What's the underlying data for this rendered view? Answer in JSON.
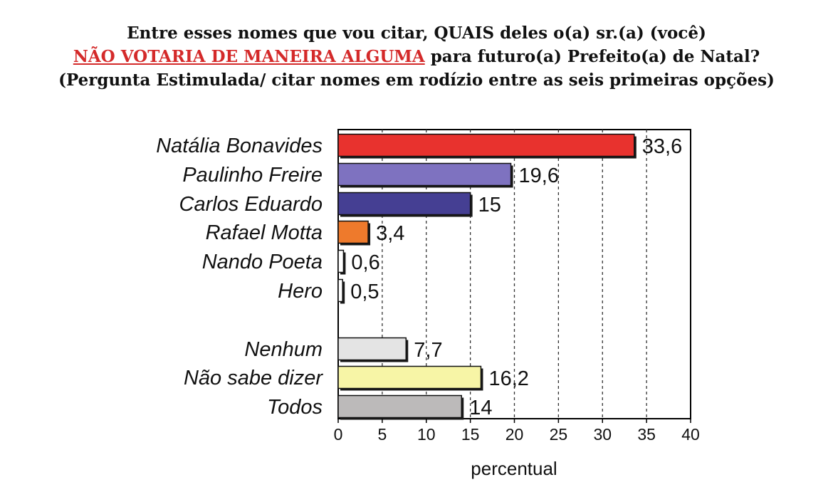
{
  "title": {
    "line1": "Entre esses nomes que vou citar, QUAIS deles o(a) sr.(a) (você)",
    "line2_highlight": "NÃO VOTARIA DE MANEIRA ALGUMA",
    "line2_rest": " para futuro(a) Prefeito(a) de Natal?",
    "line3": "(Pergunta Estimulada/ citar nomes em rodízio entre as seis primeiras opções)"
  },
  "chart_data": {
    "type": "bar",
    "orientation": "horizontal",
    "categories": [
      "Natália Bonavides",
      "Paulinho Freire",
      "Carlos Eduardo",
      "Rafael Motta",
      "Nando Poeta",
      "Hero",
      "Nenhum",
      "Não sabe dizer",
      "Todos"
    ],
    "values": [
      33.6,
      19.6,
      15,
      3.4,
      0.6,
      0.5,
      7.7,
      16.2,
      14
    ],
    "value_labels": [
      "33,6",
      "19,6",
      "15",
      "3,4",
      "0,6",
      "0,5",
      "7,7",
      "16,2",
      "14"
    ],
    "colors": [
      "#e8322e",
      "#7e72c0",
      "#453f93",
      "#ee7a2c",
      "#ffffff",
      "#ffffff",
      "#e4e4e4",
      "#f7f5a6",
      "#bcbaba"
    ],
    "groups": [
      [
        0,
        1,
        2,
        3,
        4,
        5
      ],
      [
        6,
        7,
        8
      ]
    ],
    "xlabel": "percentual",
    "xlim": [
      0,
      40
    ],
    "xticks": [
      0,
      5,
      10,
      15,
      20,
      25,
      30,
      35,
      40
    ],
    "grid": "vertical dashed"
  }
}
